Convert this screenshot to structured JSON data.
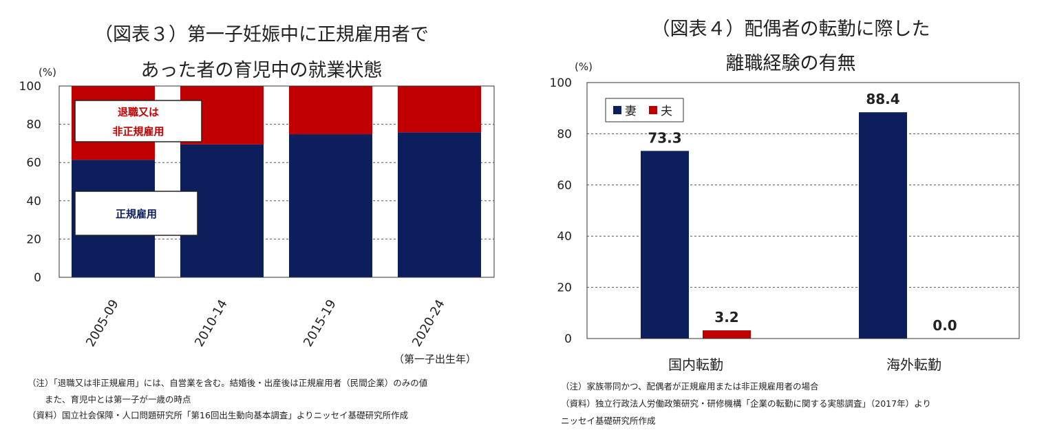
{
  "chart_data": [
    {
      "type": "bar",
      "stacked": true,
      "title_line1": "（図表３）第一子妊娠中に正規雇用者で",
      "title_line2": "あった者の育児中の就業状態",
      "unit_label": "(%)",
      "xlabel": "（第一子出生年）",
      "categories": [
        "2005-09",
        "2010-14",
        "2015-19",
        "2020-24"
      ],
      "series": [
        {
          "name": "正規雇用",
          "values": [
            61.4,
            69.5,
            74.8,
            75.8
          ]
        },
        {
          "name_line1": "退職又は",
          "name_line2": "非正規雇用",
          "values": [
            38.6,
            30.5,
            25.2,
            24.2
          ]
        }
      ],
      "ylim": [
        0,
        100
      ],
      "yticks": [
        "0",
        "20",
        "40",
        "60",
        "80",
        "100"
      ],
      "grid": true,
      "colors": {
        "正規雇用": "#0c1f5c",
        "退職又は非正規雇用": "#c00000"
      },
      "notes": [
        "（注）「退職又は非正規雇用」には、自営業を含む。結婚後・出産後は正規雇用者（民間企業）のみの値",
        "　　また、育児中とは第一子が一歳の時点",
        "（資料）国立社会保障・人口問題研究所「第16回出生動向基本調査」よりニッセイ基礎研究所作成"
      ]
    },
    {
      "type": "bar",
      "title_line1": "（図表４）配偶者の転勤に際した",
      "title_line2": "離職経験の有無",
      "unit_label": "(%)",
      "categories": [
        "国内転勤",
        "海外転勤"
      ],
      "series": [
        {
          "name": "妻",
          "values": [
            73.3,
            88.4
          ],
          "labels": [
            "73.3",
            "88.4"
          ]
        },
        {
          "name": "夫",
          "values": [
            3.2,
            0.0
          ],
          "labels": [
            "3.2",
            "0.0"
          ]
        }
      ],
      "ylim": [
        0,
        100
      ],
      "yticks": [
        "0",
        "20",
        "40",
        "60",
        "80",
        "100"
      ],
      "grid": true,
      "legend_position": "top-left",
      "colors": {
        "妻": "#0c1f5c",
        "夫": "#c00000"
      },
      "notes": [
        "（注）家族帯同かつ、配偶者が正規雇用または非正規雇用者の場合",
        "（資料）独立行政法人労働政策研究・研修機構「企業の転勤に関する実態調査」（2017年）より",
        "ニッセイ基礎研究所作成"
      ]
    }
  ]
}
